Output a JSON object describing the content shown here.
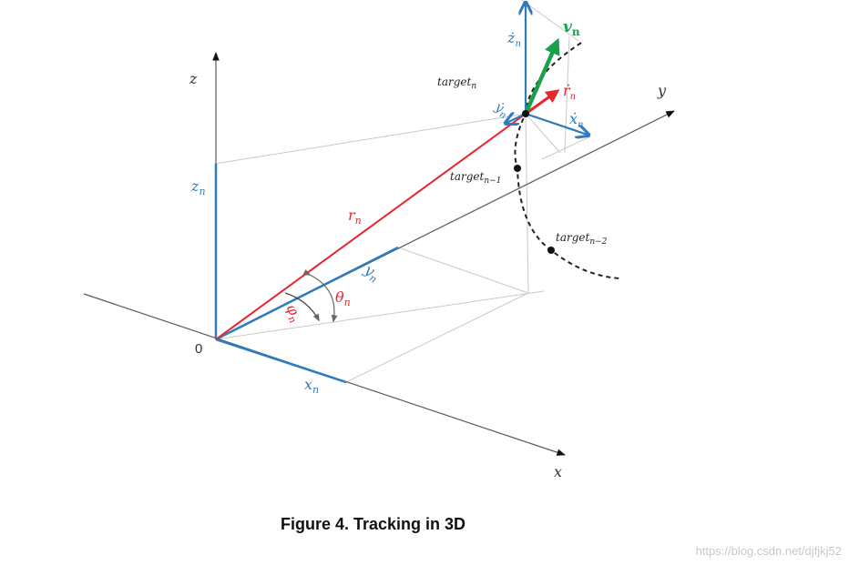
{
  "colors": {
    "axis": "#5a5a5a",
    "blue": "#2f7bbf",
    "red": "#e8262b",
    "green": "#1aa04a",
    "guide": "#c9c9c9",
    "black": "#111111"
  },
  "axes": {
    "x": "x",
    "y": "y",
    "z": "z",
    "origin": "0"
  },
  "labels": {
    "r_n": "r",
    "r_n_sub": "n",
    "x_n": "x",
    "x_n_sub": "n",
    "y_n": "y",
    "y_n_sub": "n",
    "z_n": "z",
    "z_n_sub": "n",
    "theta_n": "θ",
    "theta_n_sub": "n",
    "phi_n": "φ",
    "phi_n_sub": "n",
    "zdot_n": "ż",
    "zdot_n_sub": "n",
    "xdot_n": "ẋ",
    "xdot_n_sub": "n",
    "ydot_n": "ẏ",
    "ydot_n_sub": "n",
    "rdot_n": "ṙ",
    "rdot_n_sub": "n",
    "v_n": "v",
    "v_n_sub": "n"
  },
  "targets": {
    "current": "target",
    "current_sub": "n",
    "prev1": "target",
    "prev1_sub": "n−1",
    "prev2": "target",
    "prev2_sub": "n−2"
  },
  "caption": "Figure 4. Tracking in 3D",
  "watermark": "https://blog.csdn.net/djfjkj52"
}
